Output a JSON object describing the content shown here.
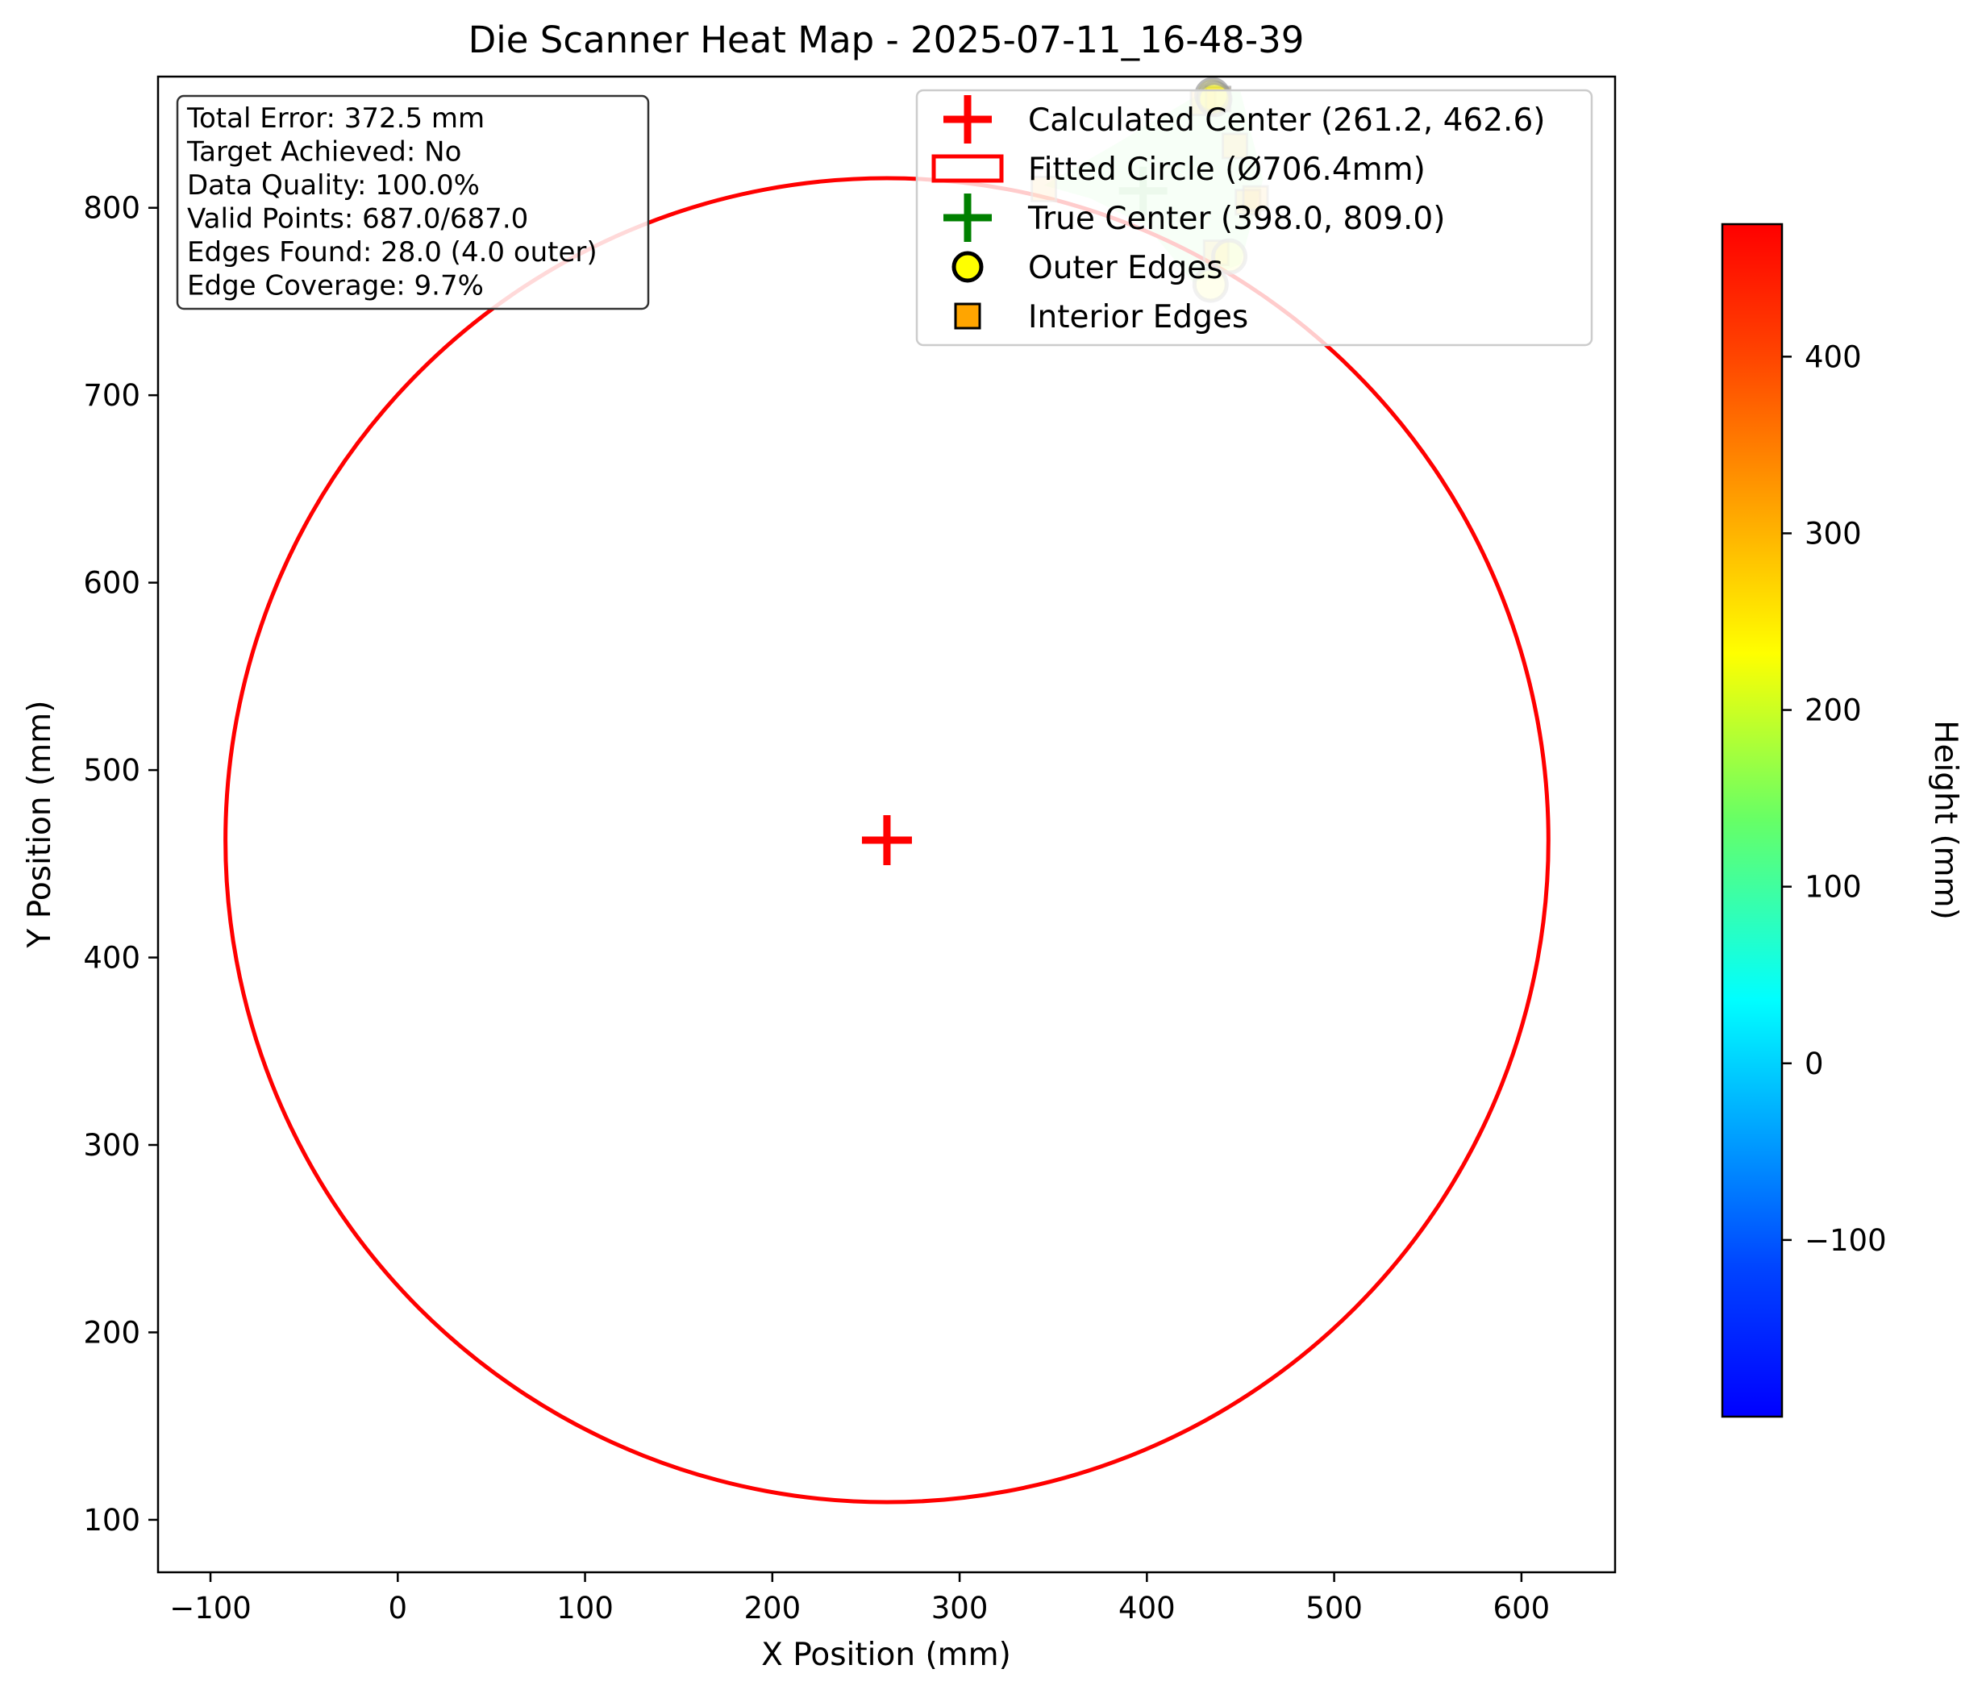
{
  "chart_data": {
    "type": "scatter",
    "title": "Die Scanner Heat Map - 2025-07-11_16-48-39",
    "xlabel": "X Position (mm)",
    "ylabel": "Y Position (mm)",
    "xlim": [
      -128,
      650
    ],
    "ylim": [
      72,
      870
    ],
    "xticks": [
      -100,
      0,
      100,
      200,
      300,
      400,
      500,
      600
    ],
    "xtick_labels": [
      "−100",
      "0",
      "100",
      "200",
      "300",
      "400",
      "500",
      "600"
    ],
    "yticks": [
      100,
      200,
      300,
      400,
      500,
      600,
      700,
      800
    ],
    "ytick_labels": [
      "100",
      "200",
      "300",
      "400",
      "500",
      "600",
      "700",
      "800"
    ],
    "stats": [
      "Total Error: 372.5 mm",
      "Target Achieved: No",
      "Data Quality: 100.0%",
      "Valid Points: 687.0/687.0",
      "Edges Found: 28.0 (4.0 outer)",
      "Edge Coverage: 9.7%"
    ],
    "calculated_center": {
      "x": 261.2,
      "y": 462.6,
      "color": "#ff0000"
    },
    "fitted_circle": {
      "cx": 261.2,
      "cy": 462.6,
      "diameter": 706.4,
      "color": "#ff0000"
    },
    "true_center": {
      "x": 398.0,
      "y": 809.0,
      "color": "#008000"
    },
    "outer_edges": [
      {
        "x": 435,
        "y": 860
      },
      {
        "x": 436,
        "y": 858
      },
      {
        "x": 444,
        "y": 774
      },
      {
        "x": 434,
        "y": 759
      }
    ],
    "interior_edges": [
      {
        "x": 345,
        "y": 810
      },
      {
        "x": 430,
        "y": 856
      },
      {
        "x": 438,
        "y": 858
      },
      {
        "x": 447,
        "y": 833
      },
      {
        "x": 454,
        "y": 803
      },
      {
        "x": 458,
        "y": 805
      },
      {
        "x": 437,
        "y": 776
      }
    ],
    "heat_region": [
      [
        345,
        812
      ],
      [
        385,
        835
      ],
      [
        430,
        862
      ],
      [
        450,
        862
      ],
      [
        462,
        815
      ],
      [
        450,
        770
      ],
      [
        425,
        760
      ],
      [
        400,
        790
      ],
      [
        370,
        805
      ]
    ],
    "legend": {
      "placement": "top-right",
      "entries": [
        {
          "label": "Calculated Center (261.2, 462.6)",
          "marker": "plus",
          "color": "#ff0000"
        },
        {
          "label": "Fitted Circle (Ø706.4mm)",
          "marker": "rect",
          "color": "#ff0000"
        },
        {
          "label": "True Center (398.0, 809.0)",
          "marker": "plus",
          "color": "#008000"
        },
        {
          "label": "Outer Edges",
          "marker": "circle",
          "color": "#ffff00"
        },
        {
          "label": "Interior Edges",
          "marker": "square",
          "color": "#ffa500"
        }
      ]
    },
    "colorbar": {
      "label": "Height (mm)",
      "colormap": "jet",
      "range": [
        -200,
        475
      ],
      "ticks": [
        -100,
        0,
        100,
        200,
        300,
        400
      ],
      "tick_labels": [
        "−100",
        "0",
        "100",
        "200",
        "300",
        "400"
      ]
    }
  }
}
